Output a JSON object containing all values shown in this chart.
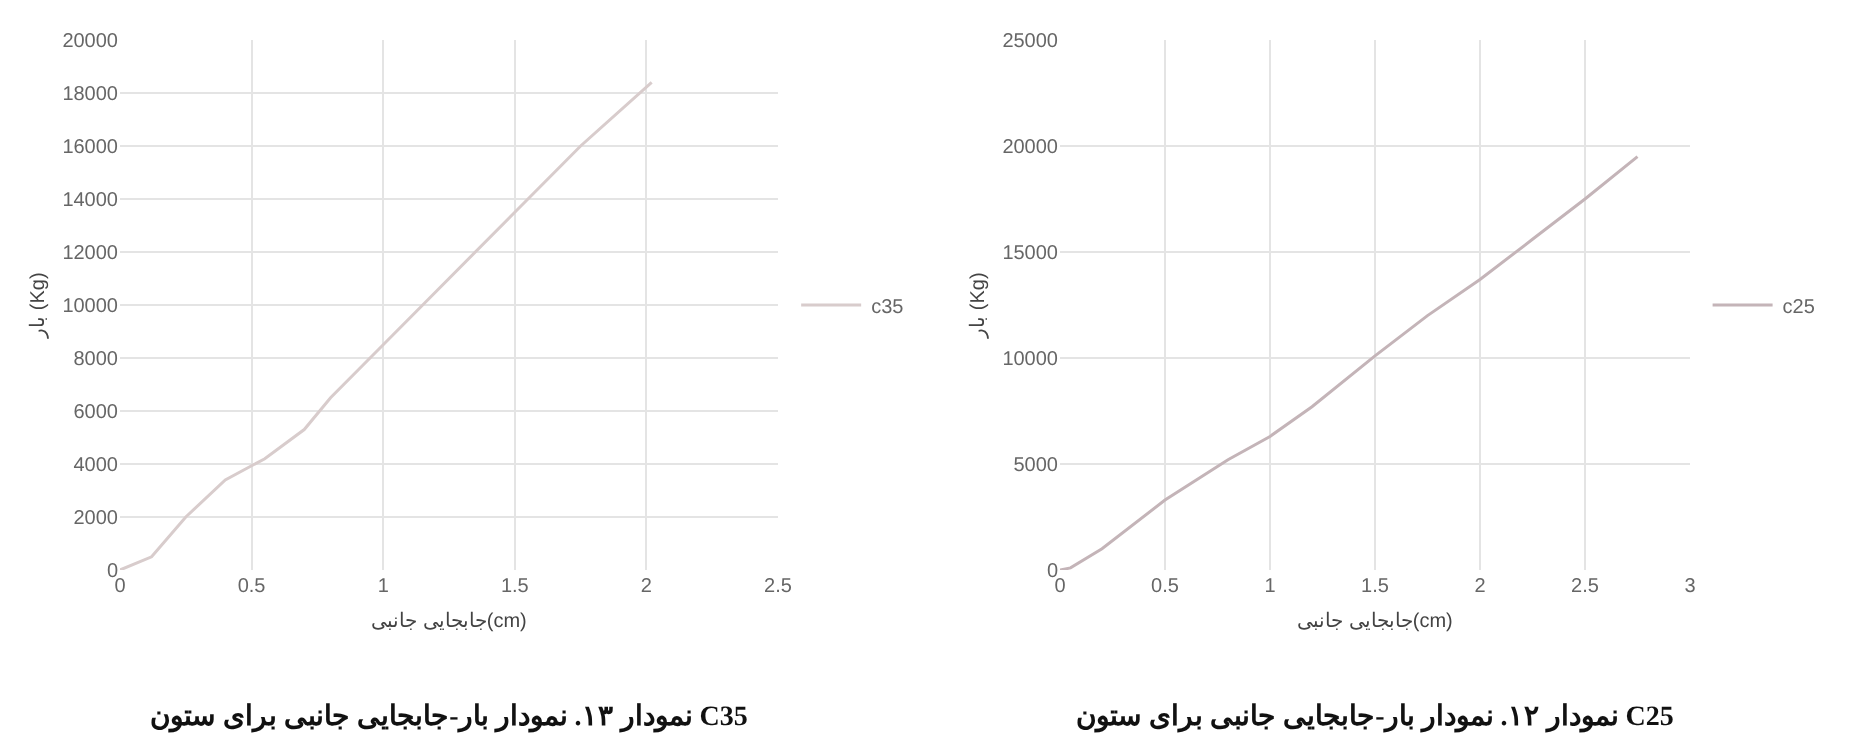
{
  "chart_data": [
    {
      "type": "line",
      "title": "نمودار ۱۳. نمودار بار-جابجایی جانبی برای ستون C35",
      "xlabel": "جابجایی جانبی(cm)",
      "ylabel": "بار (Kg)",
      "xlim": [
        0,
        2.5
      ],
      "xticks": [
        0,
        0.5,
        1,
        1.5,
        2,
        2.5
      ],
      "ylim": [
        0,
        20000
      ],
      "yticks": [
        0,
        2000,
        4000,
        6000,
        8000,
        10000,
        12000,
        14000,
        16000,
        18000,
        20000
      ],
      "grid": true,
      "legend": "right",
      "marker": "none",
      "line_style": "solid",
      "series": [
        {
          "name": "c35",
          "color": "#d8cccc",
          "x": [
            0,
            0.12,
            0.25,
            0.4,
            0.55,
            0.7,
            0.8,
            1,
            1.15,
            1.5,
            1.75,
            2.02
          ],
          "values": [
            0,
            500,
            2000,
            3400,
            4200,
            5300,
            6500,
            8500,
            10000,
            13500,
            16000,
            18400
          ]
        }
      ]
    },
    {
      "type": "line",
      "title": "نمودار ۱۲. نمودار بار-جابجایی جانبی برای ستون C25",
      "xlabel": "جابجایی جانبی(cm)",
      "ylabel": "بار (Kg)",
      "xlim": [
        0,
        3
      ],
      "xticks": [
        0,
        0.5,
        1,
        1.5,
        2,
        2.5,
        3
      ],
      "ylim": [
        0,
        25000
      ],
      "yticks": [
        0,
        5000,
        10000,
        15000,
        20000,
        25000
      ],
      "grid": true,
      "legend": "right",
      "marker": "none",
      "line_style": "solid",
      "series": [
        {
          "name": "c25",
          "color": "#c4b4b8",
          "x": [
            0,
            0.05,
            0.2,
            0.5,
            0.8,
            1,
            1.2,
            1.5,
            1.75,
            2,
            2.25,
            2.5,
            2.75
          ],
          "values": [
            0,
            100,
            1000,
            3300,
            5200,
            6300,
            7700,
            10100,
            12000,
            13700,
            15600,
            17500,
            19500
          ]
        }
      ]
    }
  ]
}
